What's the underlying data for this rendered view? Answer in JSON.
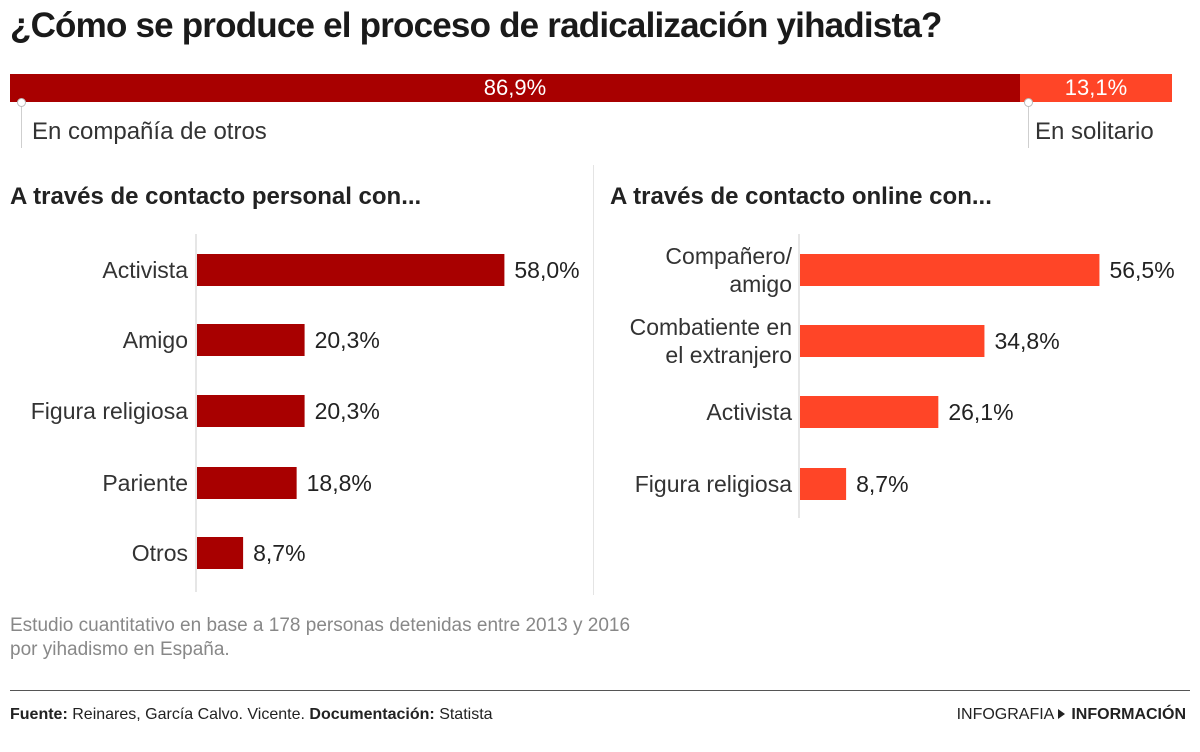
{
  "title": "¿Cómo se produce el proceso de radicalización yihadista?",
  "split": {
    "left_label": "En compañía de otros",
    "left_value": 86.9,
    "left_text": "86,9%",
    "right_label": "En solitario",
    "right_value": 13.1,
    "right_text": "13,1%"
  },
  "colors": {
    "dark": "#a80000",
    "light": "#ff4527"
  },
  "chart_data": [
    {
      "type": "bar",
      "orientation": "horizontal",
      "title": "A través de contacto personal con...",
      "categories": [
        "Activista",
        "Amigo",
        "Figura religiosa",
        "Pariente",
        "Otros"
      ],
      "values": [
        58.0,
        20.3,
        20.3,
        18.8,
        8.7
      ],
      "value_labels": [
        "58,0%",
        "20,3%",
        "20,3%",
        "18,8%",
        "8,7%"
      ],
      "unit": "%",
      "color": "#a80000"
    },
    {
      "type": "bar",
      "orientation": "horizontal",
      "title": "A través de contacto online con...",
      "categories": [
        "Compañero/ amigo",
        "Combatiente en el extranjero",
        "Activista",
        "Figura religiosa"
      ],
      "category_lines": [
        [
          "Compañero/",
          "amigo"
        ],
        [
          "Combatiente en",
          "el extranjero"
        ],
        [
          "Activista"
        ],
        [
          "Figura religiosa"
        ]
      ],
      "values": [
        56.5,
        34.8,
        26.1,
        8.7
      ],
      "value_labels": [
        "56,5%",
        "34,8%",
        "26,1%",
        "8,7%"
      ],
      "unit": "%",
      "color": "#ff4527"
    }
  ],
  "note": {
    "line1": "Estudio cuantitativo en base a 178 personas detenidas entre 2013 y 2016",
    "line2": "por yihadismo en España."
  },
  "footer": {
    "source_label": "Fuente:",
    "source_text": "Reinares, García Calvo. Vicente.",
    "doc_label": "Documentación:",
    "doc_text": "Statista",
    "brand_prefix": "INFOGRAFIA",
    "brand_name": "INFORMACIÓN"
  }
}
